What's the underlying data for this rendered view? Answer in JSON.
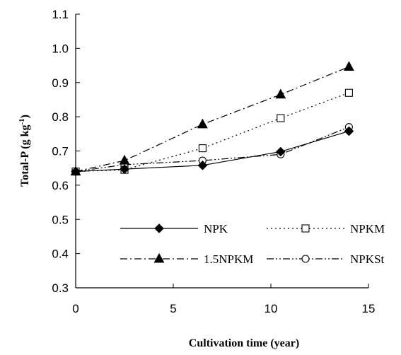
{
  "chart_data": {
    "type": "line",
    "xlabel": "Cultivation time  (year)",
    "ylabel": "Total-P (g kg",
    "ylabel_sup": "-1",
    "ylabel_close": ")",
    "xlim": [
      0,
      15
    ],
    "ylim": [
      0.3,
      1.1
    ],
    "x_ticks": [
      "0",
      "5",
      "10",
      "15"
    ],
    "y_ticks": [
      "0.3",
      "0.4",
      "0.5",
      "0.6",
      "0.7",
      "0.8",
      "0.9",
      "1.0",
      "1.1"
    ],
    "x_tick_values": [
      0,
      5,
      10,
      15
    ],
    "y_tick_values": [
      0.3,
      0.4,
      0.5,
      0.6,
      0.7,
      0.8,
      0.9,
      1.0,
      1.1
    ],
    "grid": false,
    "legend_position": "bottom, inside plot, two columns",
    "x": [
      0,
      2.5,
      6.5,
      10.5,
      14
    ],
    "series": [
      {
        "name": "NPK",
        "marker": "diamond-filled",
        "dash": "solid",
        "color": "#000000",
        "values": [
          0.64,
          0.647,
          0.658,
          0.698,
          0.758
        ]
      },
      {
        "name": "NPKM",
        "marker": "square-open",
        "dash": "dotted",
        "color": "#000000",
        "values": [
          0.64,
          0.645,
          0.708,
          0.796,
          0.87
        ]
      },
      {
        "name": "1.5NPKM",
        "marker": "triangle-filled",
        "dash": "dash-dot",
        "color": "#000000",
        "values": [
          0.64,
          0.672,
          0.778,
          0.865,
          0.946
        ]
      },
      {
        "name": "NPKSt",
        "marker": "circle-open",
        "dash": "dash-dot-dot",
        "color": "#000000",
        "values": [
          0.64,
          0.66,
          0.672,
          0.69,
          0.77
        ]
      }
    ]
  }
}
